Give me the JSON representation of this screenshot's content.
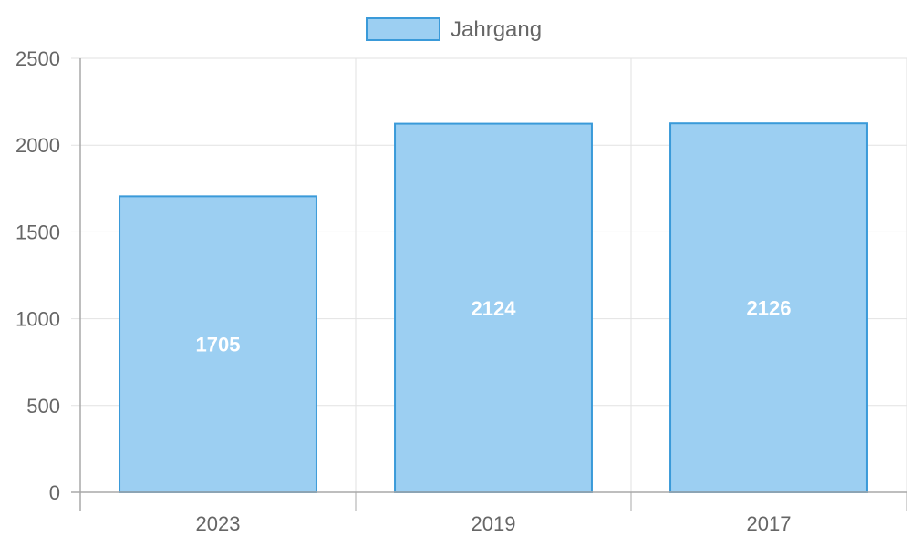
{
  "chart_data": {
    "type": "bar",
    "categories": [
      "2023",
      "2019",
      "2017"
    ],
    "series": [
      {
        "name": "Jahrgang",
        "values": [
          1705,
          2124,
          2126
        ]
      }
    ],
    "ylim": [
      0,
      2500
    ],
    "yticks": [
      0,
      500,
      1000,
      1500,
      2000,
      2500
    ],
    "grid": true,
    "legend_position": "top-center",
    "show_value_labels": true
  },
  "colors": {
    "bar_fill": "#9ccff2",
    "bar_stroke": "#3a9ad9",
    "grid": "#e2e2e2",
    "axis": "#a8a8a8",
    "text": "#666666",
    "value_label": "#ffffff"
  }
}
